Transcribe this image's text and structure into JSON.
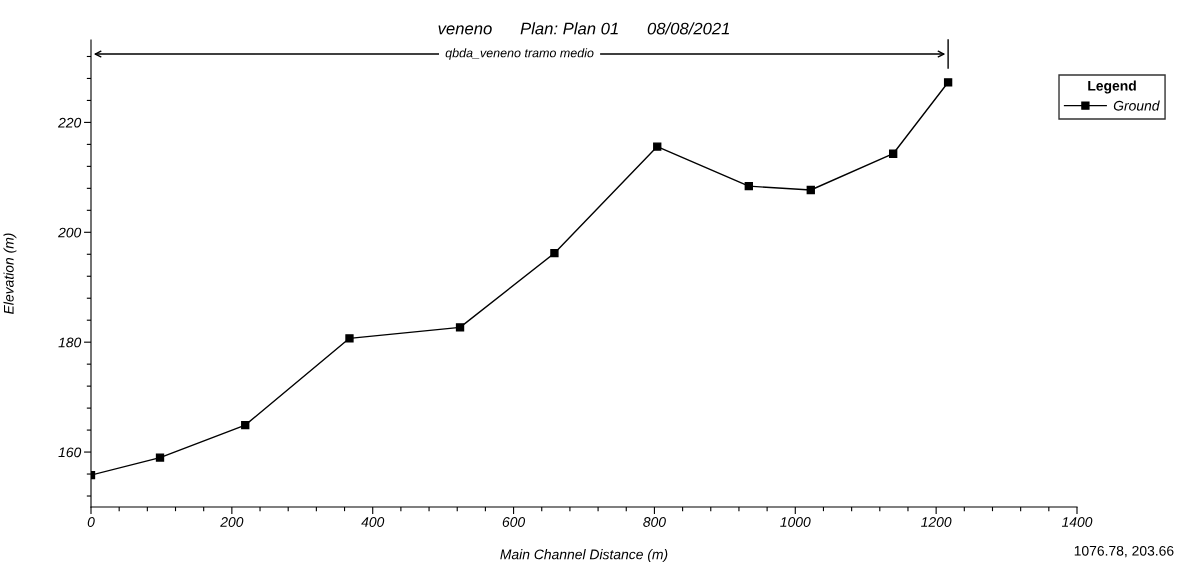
{
  "chart_data": {
    "type": "line",
    "title": "veneno      Plan: Plan 01      08/08/2021",
    "xlabel": "Main Channel Distance (m)",
    "ylabel": "Elevation (m)",
    "legend_title": "Legend",
    "x": [
      0,
      98,
      219,
      367,
      524,
      658,
      804,
      934,
      1022,
      1139,
      1217
    ],
    "series": [
      {
        "name": "Ground",
        "color": "#000000",
        "values": [
          155.8,
          159.0,
          164.9,
          180.7,
          182.7,
          196.2,
          215.6,
          208.4,
          207.7,
          214.3,
          227.3
        ]
      }
    ],
    "xlim": [
      0,
      1400
    ],
    "xticks": [
      0,
      {
        "value": 40,
        "label": null
      },
      {
        "value": 80,
        "label": null
      },
      {
        "value": 120,
        "label": null
      },
      {
        "value": 160,
        "label": null
      },
      200,
      {
        "value": 240,
        "label": null
      },
      {
        "value": 280,
        "label": null
      },
      {
        "value": 320,
        "label": null
      },
      {
        "value": 360,
        "label": null
      },
      400,
      {
        "value": 440,
        "label": null
      },
      {
        "value": 480,
        "label": null
      },
      {
        "value": 520,
        "label": null
      },
      {
        "value": 560,
        "label": null
      },
      600,
      {
        "value": 640,
        "label": null
      },
      {
        "value": 680,
        "label": null
      },
      {
        "value": 720,
        "label": null
      },
      {
        "value": 760,
        "label": null
      },
      800,
      {
        "value": 840,
        "label": null
      },
      {
        "value": 880,
        "label": null
      },
      {
        "value": 920,
        "label": null
      },
      {
        "value": 960,
        "label": null
      },
      1000,
      {
        "value": 1040,
        "label": null
      },
      {
        "value": 1080,
        "label": null
      },
      {
        "value": 1120,
        "label": null
      },
      {
        "value": 1160,
        "label": null
      },
      1200,
      {
        "value": 1240,
        "label": null
      },
      {
        "value": 1280,
        "label": null
      },
      {
        "value": 1320,
        "label": null
      },
      {
        "value": 1360,
        "label": null
      },
      1400
    ],
    "ylim": [
      150,
      235
    ],
    "yticks": [
      {
        "value": 152,
        "label": null
      },
      {
        "value": 156,
        "label": null
      },
      160,
      {
        "value": 164,
        "label": null
      },
      {
        "value": 168,
        "label": null
      },
      {
        "value": 172,
        "label": null
      },
      {
        "value": 176,
        "label": null
      },
      180,
      {
        "value": 184,
        "label": null
      },
      {
        "value": 188,
        "label": null
      },
      {
        "value": 192,
        "label": null
      },
      {
        "value": 196,
        "label": null
      },
      200,
      {
        "value": 204,
        "label": null
      },
      {
        "value": 208,
        "label": null
      },
      {
        "value": 212,
        "label": null
      },
      {
        "value": 216,
        "label": null
      },
      220,
      {
        "value": 224,
        "label": null
      },
      {
        "value": 228,
        "label": null
      },
      {
        "value": 232,
        "label": null
      }
    ],
    "grid": false,
    "legend": "top right",
    "marker": "square",
    "line_style": "solid",
    "annotations": [
      "qbda_veneno tramo medio",
      "1076.78, 203.66"
    ]
  }
}
